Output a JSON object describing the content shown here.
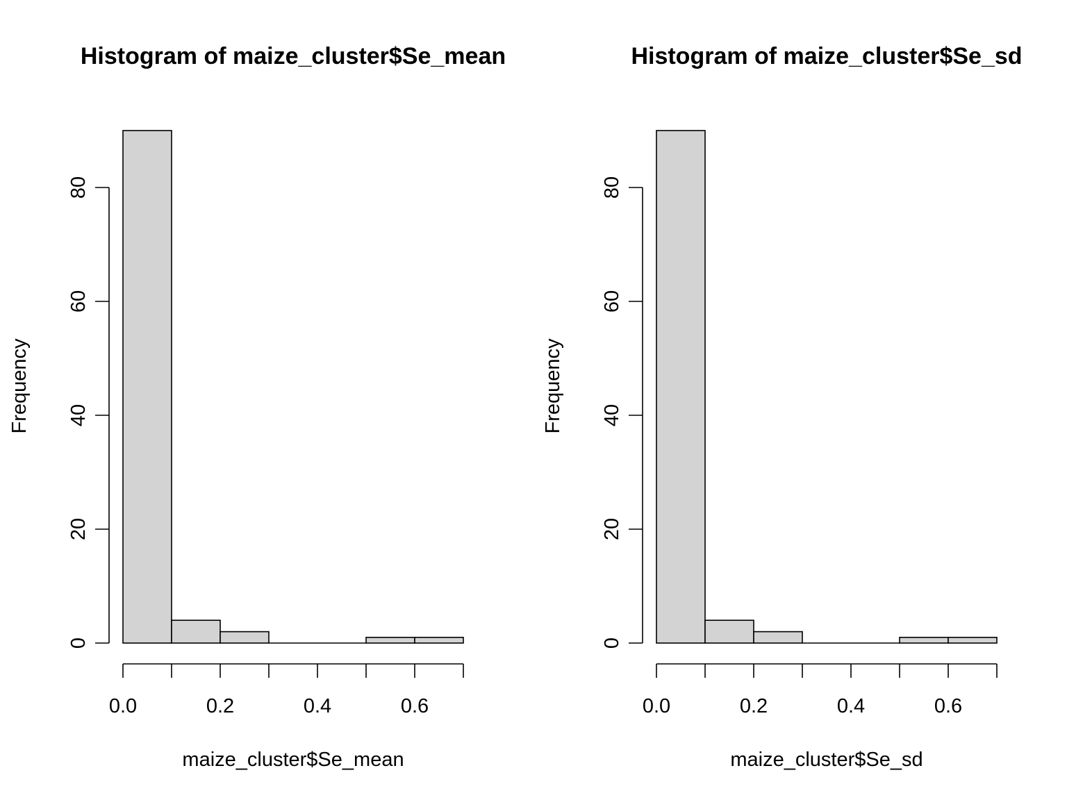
{
  "chart_data": [
    {
      "type": "bar",
      "title": "Histogram of maize_cluster$Se_mean",
      "xlabel": "maize_cluster$Se_mean",
      "ylabel": "Frequency",
      "bins": [
        [
          0.0,
          0.1
        ],
        [
          0.1,
          0.2
        ],
        [
          0.2,
          0.3
        ],
        [
          0.3,
          0.4
        ],
        [
          0.4,
          0.5
        ],
        [
          0.5,
          0.6
        ],
        [
          0.6,
          0.7
        ]
      ],
      "values": [
        90,
        4,
        2,
        0,
        0,
        1,
        1
      ],
      "xlim": [
        0.0,
        0.7
      ],
      "ylim": [
        0,
        90
      ],
      "x_ticks": [
        0.0,
        0.1,
        0.2,
        0.3,
        0.4,
        0.5,
        0.6,
        0.7
      ],
      "x_tick_labels": [
        "0.0",
        "0.2",
        "0.4",
        "0.6"
      ],
      "x_tick_label_values": [
        0.0,
        0.2,
        0.4,
        0.6
      ],
      "y_ticks": [
        0,
        20,
        40,
        60,
        80
      ],
      "y_tick_labels": [
        "0",
        "20",
        "40",
        "60",
        "80"
      ],
      "grid": false
    },
    {
      "type": "bar",
      "title": "Histogram of maize_cluster$Se_sd",
      "xlabel": "maize_cluster$Se_sd",
      "ylabel": "Frequency",
      "bins": [
        [
          0.0,
          0.1
        ],
        [
          0.1,
          0.2
        ],
        [
          0.2,
          0.3
        ],
        [
          0.3,
          0.4
        ],
        [
          0.4,
          0.5
        ],
        [
          0.5,
          0.6
        ],
        [
          0.6,
          0.7
        ]
      ],
      "values": [
        90,
        4,
        2,
        0,
        0,
        1,
        1
      ],
      "xlim": [
        0.0,
        0.7
      ],
      "ylim": [
        0,
        90
      ],
      "x_ticks": [
        0.0,
        0.1,
        0.2,
        0.3,
        0.4,
        0.5,
        0.6,
        0.7
      ],
      "x_tick_labels": [
        "0.0",
        "0.2",
        "0.4",
        "0.6"
      ],
      "x_tick_label_values": [
        0.0,
        0.2,
        0.4,
        0.6
      ],
      "y_ticks": [
        0,
        20,
        40,
        60,
        80
      ],
      "y_tick_labels": [
        "0",
        "20",
        "40",
        "60",
        "80"
      ],
      "grid": false
    }
  ],
  "colors": {
    "bar_fill": "#d3d3d3",
    "bar_stroke": "#000000",
    "background": "#ffffff"
  }
}
